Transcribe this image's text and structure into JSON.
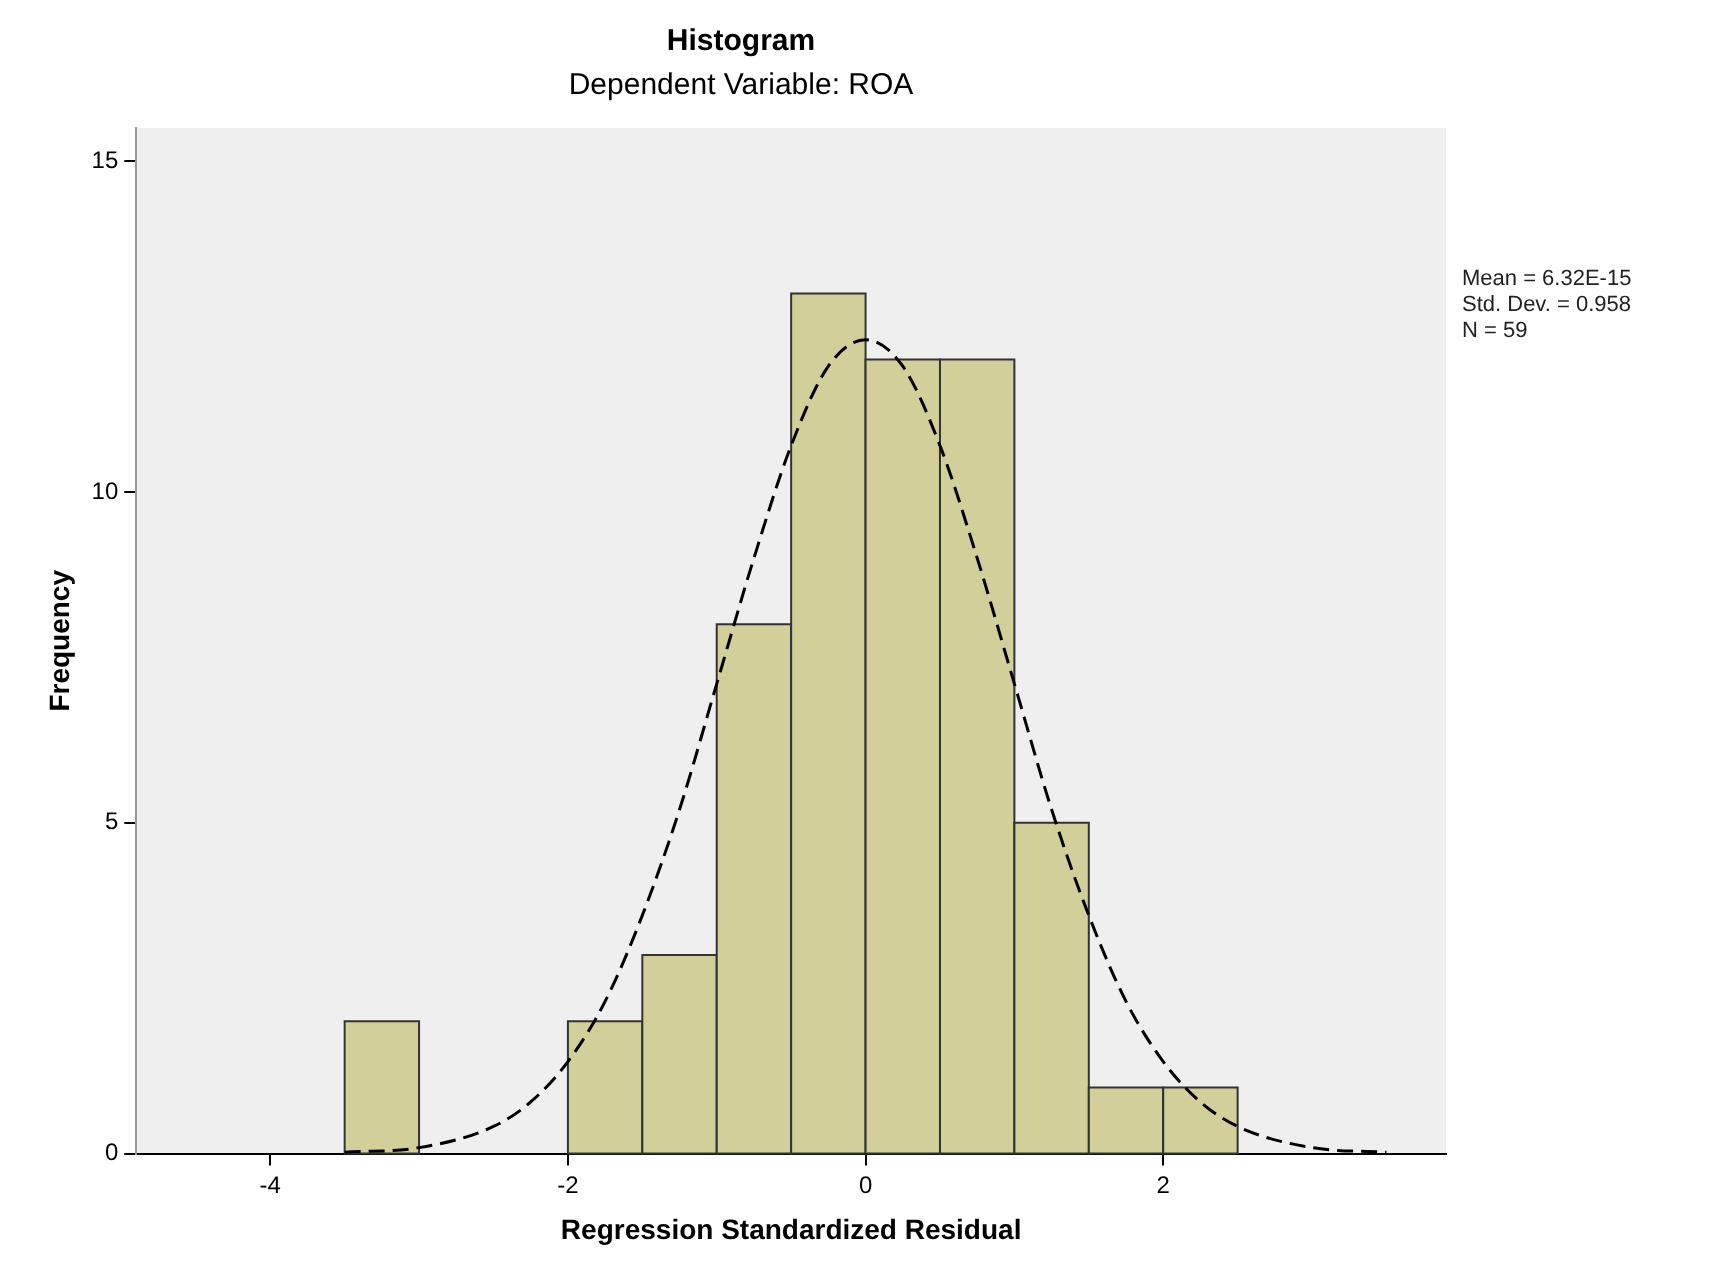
{
  "chart_data": {
    "type": "histogram",
    "title": "Histogram",
    "subtitle": "Dependent Variable: ROA",
    "xlabel": "Regression Standardized Residual",
    "ylabel": "Frequency",
    "bins": [
      -3.5,
      -3,
      -2.5,
      -2,
      -1.5,
      -1,
      -0.5,
      0,
      0.5,
      1,
      1.5,
      2,
      2.5
    ],
    "values": [
      2,
      0,
      0,
      2,
      3,
      8,
      13,
      12,
      12,
      5,
      1,
      1
    ],
    "color": "#d3cf9a",
    "series": [
      {
        "type": "line",
        "color": "#000000",
        "line_style": "dashed",
        "marker": "none",
        "x": [
          -3.5,
          -3,
          -2.5,
          -2.25,
          -2,
          -1.75,
          -1.5,
          -1.25,
          -1,
          -0.75,
          -0.5,
          -0.25,
          0,
          0.25,
          0.5,
          0.75,
          1,
          1.25,
          1.5,
          1.75,
          2,
          2.25,
          2.5,
          3,
          3.5
        ],
        "values": [
          0.02,
          0.09,
          0.41,
          0.78,
          1.39,
          2.3,
          3.6,
          5.2,
          7.1,
          9.0,
          10.7,
          11.9,
          12.3,
          11.9,
          10.7,
          9.0,
          7.1,
          5.2,
          3.6,
          2.3,
          1.39,
          0.78,
          0.41,
          0.09,
          0.02
        ]
      }
    ],
    "xlim": [
      -4.9,
      3.9
    ],
    "xticks": [
      -4,
      -2,
      0,
      2
    ],
    "ylim": [
      0,
      15.5
    ],
    "yticks": [
      0,
      5,
      10,
      15
    ],
    "grid": false,
    "annotations": [
      "Mean = 6.32E-15",
      "Std. Dev. = 0.958",
      "N = 59"
    ]
  }
}
